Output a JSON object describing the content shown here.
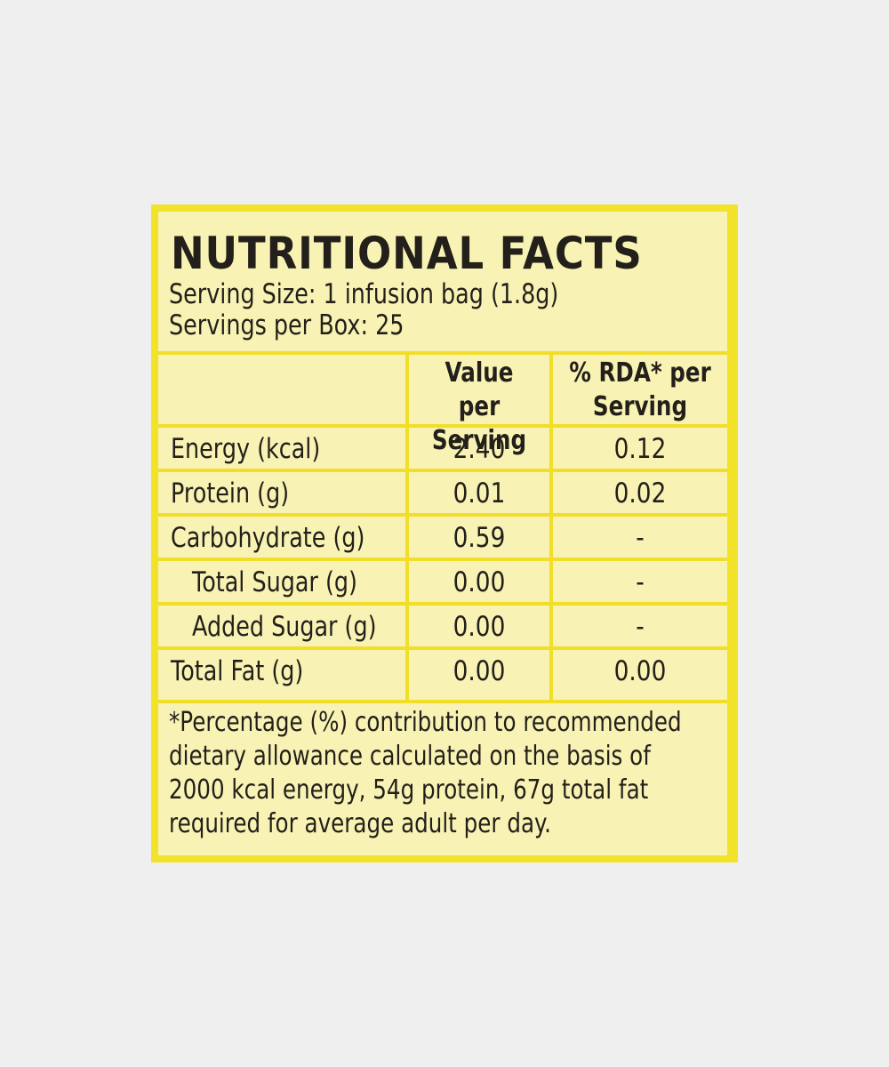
{
  "title": "NUTRITIONAL FACTS",
  "serving_size": "Serving Size: 1 infusion bag (1.8g)",
  "servings_per_box": "Servings per Box: 25",
  "table": {
    "header": [
      "",
      "Value per Serving",
      "% RDA* per Serving"
    ],
    "rows": [
      [
        "Energy (kcal)",
        "2.40",
        "0.12"
      ],
      [
        "Protein (g)",
        "0.01",
        "0.02"
      ],
      [
        "Carbohydrate (g)",
        "0.59",
        "-"
      ],
      [
        "Total Sugar (g)",
        "0.00",
        "-"
      ],
      [
        "Added Sugar (g)",
        "0.00",
        "-"
      ],
      [
        "Total Fat (g)",
        "0.00",
        "0.00"
      ]
    ]
  },
  "footnote": [
    "*Percentage (%) contribution to recommended",
    "dietary allowance calculated on the basis of",
    "2000 kcal energy, 54g protein, 67g total fat",
    "required for average adult per day."
  ]
}
